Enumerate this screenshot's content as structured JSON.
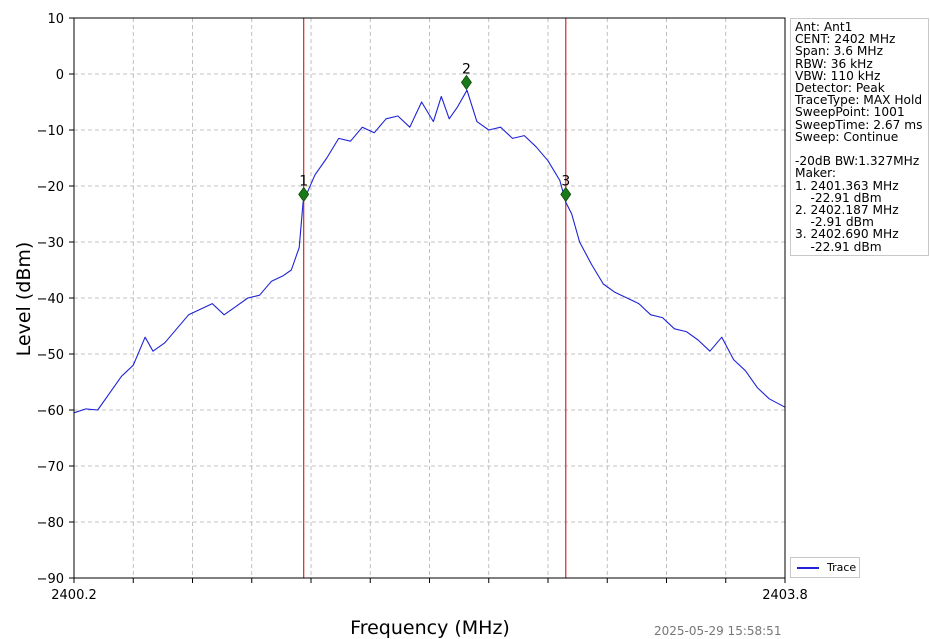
{
  "chart_data": {
    "type": "line",
    "xlabel": "Frequency (MHz)",
    "ylabel": "Level (dBm)",
    "xlim": [
      2400.2,
      2403.8
    ],
    "ylim": [
      -90,
      10
    ],
    "x_tick_labels": [
      "2400.2",
      "2403.8"
    ],
    "x_grid_step": 0.3,
    "y_ticks": [
      10,
      0,
      -10,
      -20,
      -30,
      -40,
      -50,
      -60,
      -70,
      -80,
      -90
    ],
    "y_tick_labels": [
      "10",
      "0",
      "−10",
      "−20",
      "−30",
      "−40",
      "−50",
      "−60",
      "−70",
      "−80",
      "−90"
    ],
    "grid": true,
    "series": [
      {
        "name": "Trace",
        "color": "#1f23d6",
        "x": [
          2400.2,
          2400.26,
          2400.32,
          2400.38,
          2400.44,
          2400.5,
          2400.56,
          2400.6,
          2400.66,
          2400.72,
          2400.78,
          2400.84,
          2400.9,
          2400.96,
          2401.02,
          2401.08,
          2401.14,
          2401.2,
          2401.26,
          2401.3,
          2401.34,
          2401.36,
          2401.42,
          2401.48,
          2401.54,
          2401.6,
          2401.66,
          2401.72,
          2401.78,
          2401.84,
          2401.9,
          2401.96,
          2402.02,
          2402.06,
          2402.1,
          2402.14,
          2402.19,
          2402.24,
          2402.3,
          2402.36,
          2402.42,
          2402.48,
          2402.54,
          2402.6,
          2402.66,
          2402.69,
          2402.72,
          2402.76,
          2402.82,
          2402.88,
          2402.94,
          2403.0,
          2403.06,
          2403.12,
          2403.18,
          2403.24,
          2403.3,
          2403.36,
          2403.42,
          2403.48,
          2403.54,
          2403.6,
          2403.66,
          2403.72,
          2403.8
        ],
        "y": [
          -60.5,
          -59.8,
          -60,
          -57,
          -54,
          -52,
          -47,
          -49.5,
          -48,
          -45.5,
          -43,
          -42,
          -41,
          -43,
          -41.5,
          -40,
          -39.5,
          -37,
          -36,
          -35,
          -31,
          -22.9,
          -18,
          -15,
          -11.5,
          -12,
          -9.5,
          -10.5,
          -8,
          -7.5,
          -9.5,
          -5,
          -8.5,
          -4,
          -8,
          -6,
          -2.9,
          -8.5,
          -10,
          -9.5,
          -11.5,
          -11,
          -13,
          -15.5,
          -19,
          -22.9,
          -25,
          -30,
          -34,
          -37.5,
          -39,
          -40,
          -41,
          -43,
          -43.5,
          -45.5,
          -46,
          -47.5,
          -49.5,
          -47,
          -51,
          -53,
          -56,
          -58,
          -59.5
        ]
      }
    ],
    "markers": [
      {
        "label": "1",
        "x": 2401.363,
        "y": -21.5
      },
      {
        "label": "2",
        "x": 2402.187,
        "y": -1.5
      },
      {
        "label": "3",
        "x": 2402.69,
        "y": -21.5
      }
    ],
    "vlines": [
      2401.363,
      2402.69
    ],
    "legend": {
      "label": "Trace",
      "position": "bottom-right"
    }
  },
  "info_lines": [
    "Ant: Ant1",
    "CENT: 2402 MHz",
    "Span: 3.6 MHz",
    "RBW: 36 kHz",
    "VBW: 110 kHz",
    "Detector: Peak",
    "TraceType: MAX Hold",
    "SweepPoint: 1001",
    "SweepTime: 2.67 ms",
    "Sweep: Continue",
    "",
    "-20dB BW:1.327MHz",
    "Maker:",
    "1. 2401.363 MHz",
    "    -22.91 dBm",
    "2. 2402.187 MHz",
    "    -2.91 dBm",
    "3. 2402.690 MHz",
    "    -22.91 dBm"
  ],
  "timestamp": "2025-05-29 15:58:51",
  "colors": {
    "trace": "#1f23d6",
    "vline": "#d62728",
    "marker": "#1a7a1a",
    "grid": "#b0b0b0"
  }
}
